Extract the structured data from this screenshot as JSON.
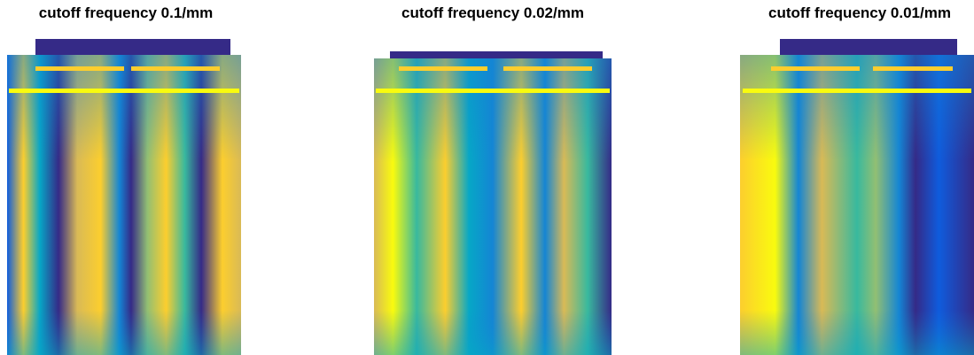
{
  "panels": [
    {
      "title": "cutoff frequency 0.1/mm"
    },
    {
      "title": "cutoff frequency 0.02/mm"
    },
    {
      "title": "cutoff frequency 0.01/mm"
    }
  ]
}
